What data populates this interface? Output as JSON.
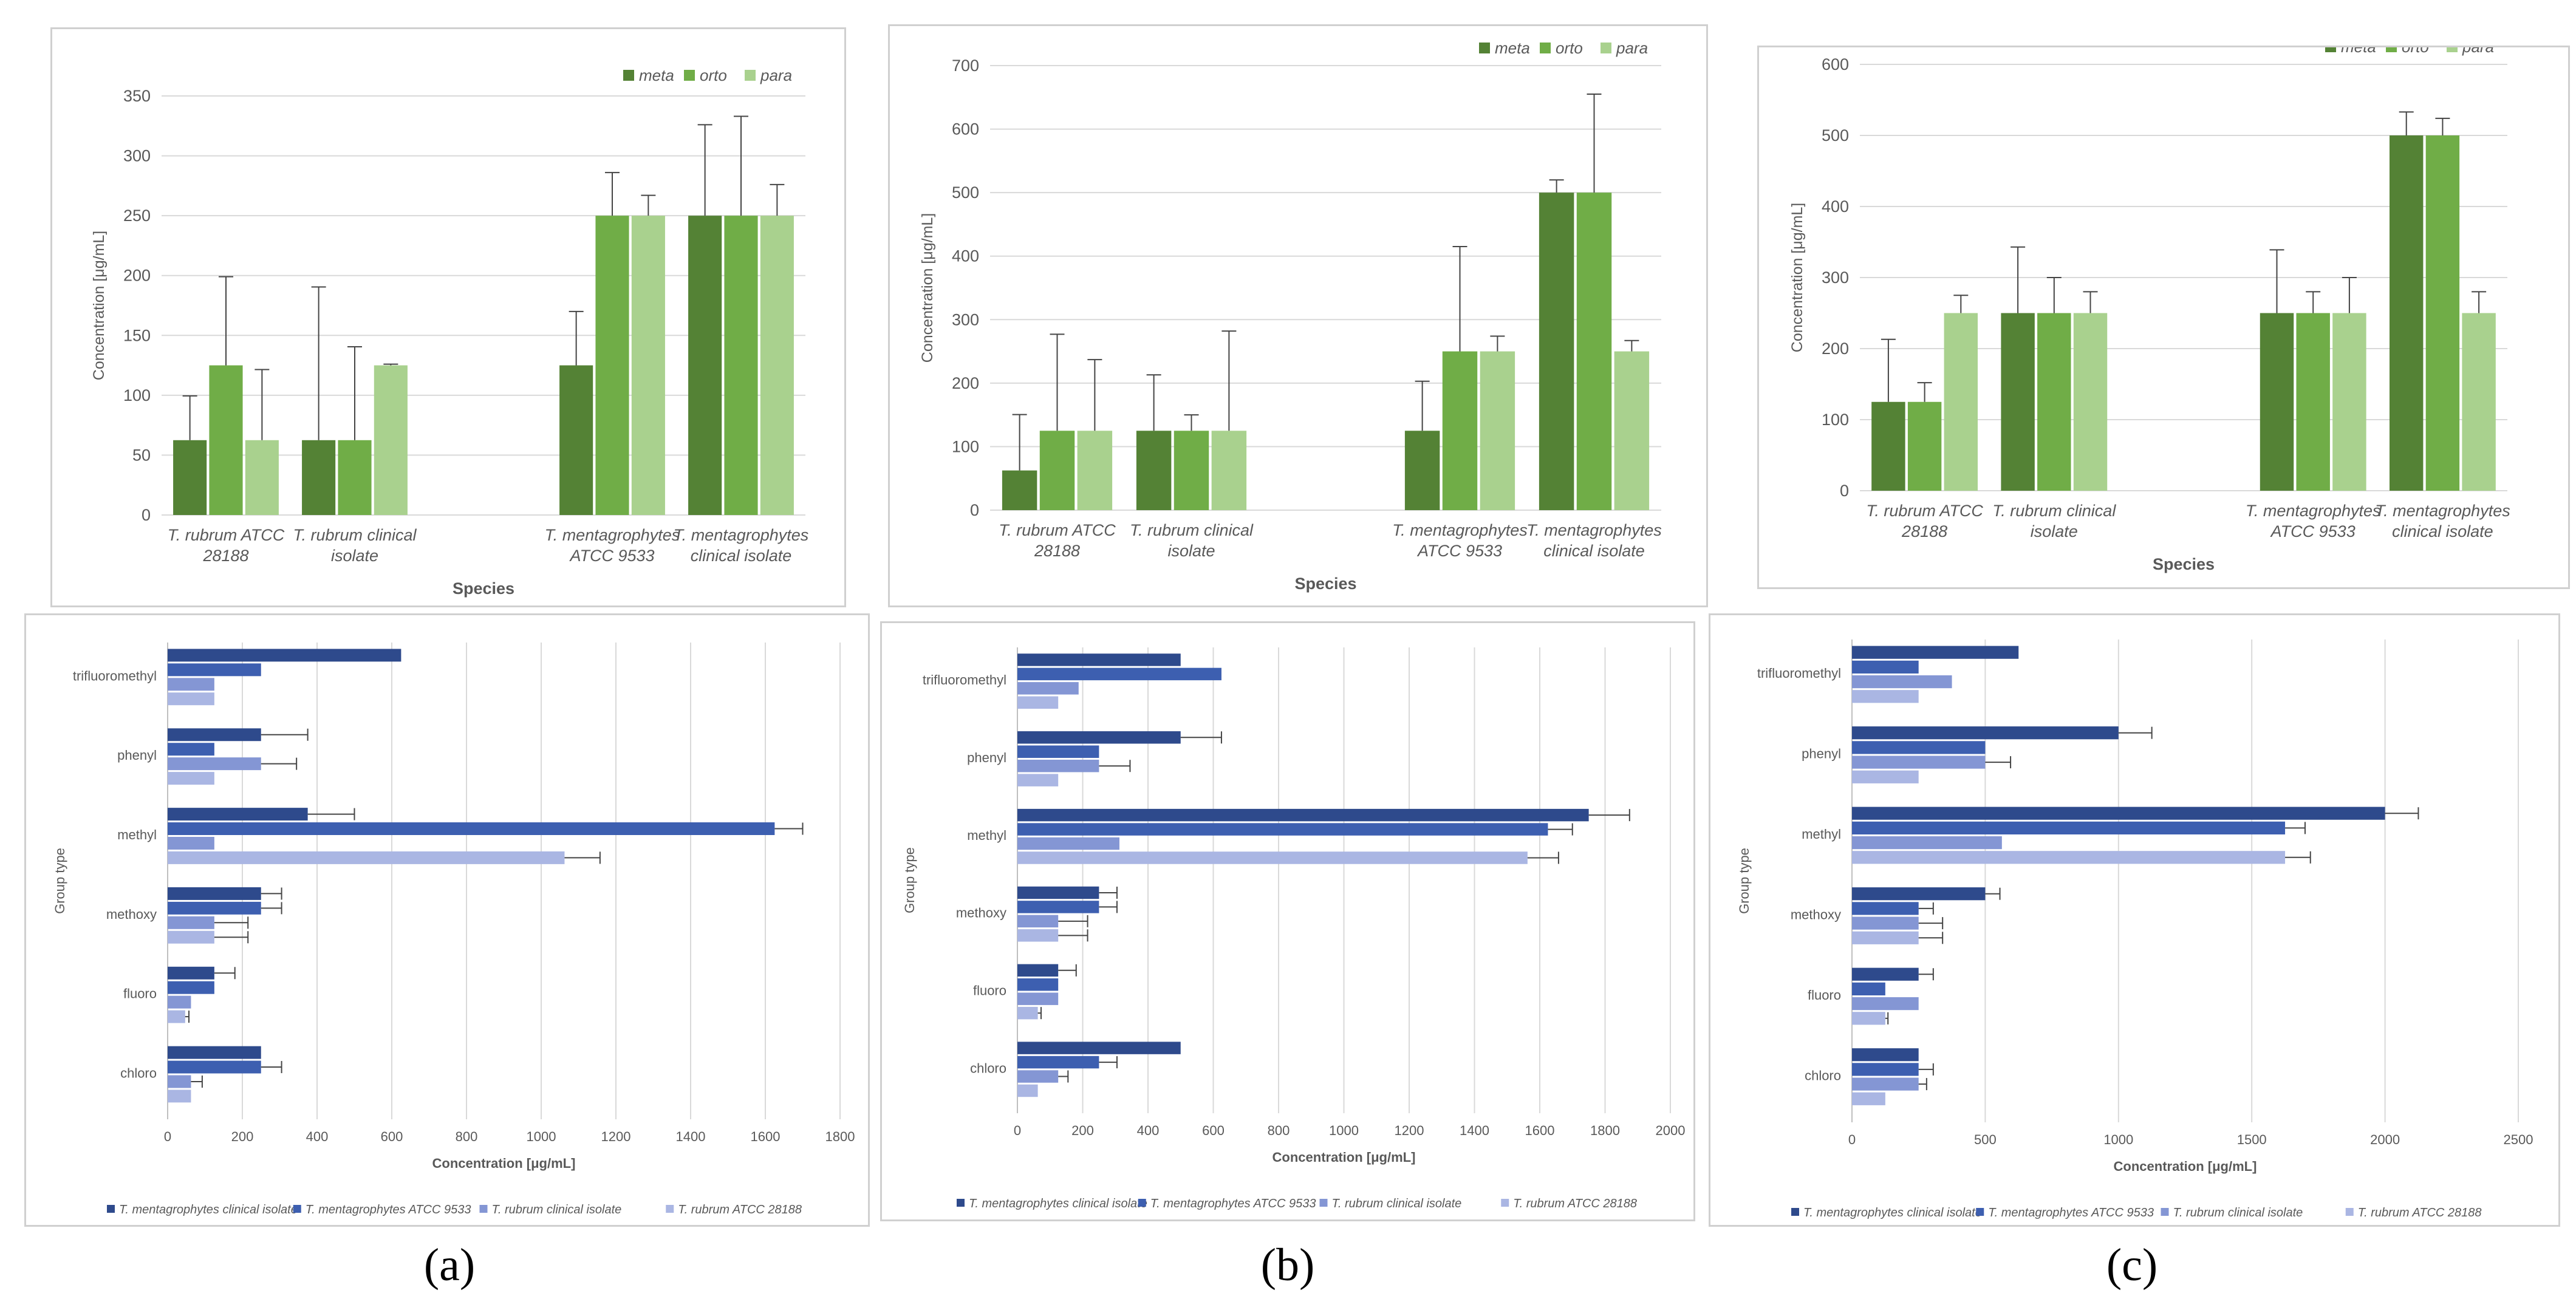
{
  "colors": {
    "meta": "#548235",
    "orto": "#70ad47",
    "para": "#a9d18e",
    "tm_clinical": "#2e4a8c",
    "tm_atcc": "#3d5fb0",
    "tr_clinical": "#8496d4",
    "tr_atcc": "#aab6e3",
    "grid": "#d9d9d9",
    "text": "#595959"
  },
  "panel_labels": [
    "(a)",
    "(b)",
    "(c)"
  ],
  "chart_data": [
    {
      "id": "a-top",
      "type": "bar",
      "title": "",
      "xlabel": "Species",
      "ylabel": "Concentration [μg/mL]",
      "ylim": [
        0,
        350
      ],
      "yticks": [
        0,
        50,
        100,
        150,
        200,
        250,
        300,
        350
      ],
      "grid": true,
      "legend_position": "top-right",
      "categories": [
        [
          "T. rubrum  ATCC",
          "28188"
        ],
        [
          "T. rubrum clinical",
          "isolate"
        ],
        [
          "T. mentagrophytes",
          "ATCC 9533"
        ],
        [
          "T. mentagrophytes",
          "clinical isolate"
        ]
      ],
      "series": [
        {
          "name": "meta",
          "values": [
            62.5,
            62.5,
            125,
            250
          ],
          "errors": [
            37,
            128,
            45,
            76
          ]
        },
        {
          "name": "orto",
          "values": [
            125,
            62.5,
            250,
            250
          ],
          "errors": [
            74,
            78,
            36,
            83
          ]
        },
        {
          "name": "para",
          "values": [
            62.5,
            125,
            250,
            250
          ],
          "errors": [
            59,
            1,
            17,
            26
          ]
        }
      ]
    },
    {
      "id": "b-top",
      "type": "bar",
      "title": "",
      "xlabel": "Species",
      "ylabel": "Concentration [μg/mL]",
      "ylim": [
        0,
        700
      ],
      "yticks": [
        0,
        100,
        200,
        300,
        400,
        500,
        600,
        700
      ],
      "grid": true,
      "legend_position": "top-right",
      "categories": [
        [
          "T. rubrum  ATCC",
          "28188"
        ],
        [
          "T. rubrum clinical",
          "isolate"
        ],
        [
          "T. mentagrophytes",
          "ATCC 9533"
        ],
        [
          "T. mentagrophytes",
          "clinical isolate"
        ]
      ],
      "series": [
        {
          "name": "meta",
          "values": [
            62.5,
            125,
            125,
            500
          ],
          "errors": [
            88,
            88,
            78,
            20
          ]
        },
        {
          "name": "orto",
          "values": [
            125,
            125,
            250,
            500
          ],
          "errors": [
            152,
            25,
            165,
            155
          ]
        },
        {
          "name": "para",
          "values": [
            125,
            125,
            250,
            250
          ],
          "errors": [
            112,
            157,
            24,
            17
          ]
        }
      ]
    },
    {
      "id": "c-top",
      "type": "bar",
      "title": "",
      "xlabel": "Species",
      "ylabel": "Concentration [μg/mL]",
      "ylim": [
        0,
        600
      ],
      "yticks": [
        0,
        100,
        200,
        300,
        400,
        500,
        600
      ],
      "grid": true,
      "legend_position": "top-right",
      "categories": [
        [
          "T. rubrum  ATCC",
          "28188"
        ],
        [
          "T. rubrum clinical",
          "isolate"
        ],
        [
          "T. mentagrophytes",
          "ATCC 9533"
        ],
        [
          "T. mentagrophytes",
          "clinical isolate"
        ]
      ],
      "series": [
        {
          "name": "meta",
          "values": [
            125,
            250,
            250,
            500
          ],
          "errors": [
            88,
            93,
            89,
            33
          ]
        },
        {
          "name": "orto",
          "values": [
            125,
            250,
            250,
            500
          ],
          "errors": [
            27,
            50,
            30,
            24
          ]
        },
        {
          "name": "para",
          "values": [
            250,
            250,
            250,
            250
          ],
          "errors": [
            25,
            30,
            50,
            30
          ]
        }
      ]
    },
    {
      "id": "a-bottom",
      "type": "bar",
      "orientation": "horizontal",
      "title": "",
      "xlabel": "Concentration  [μg/mL]",
      "ylabel": "Group type",
      "xlim": [
        0,
        1800
      ],
      "xticks": [
        0,
        200,
        400,
        600,
        800,
        1000,
        1200,
        1400,
        1600,
        1800
      ],
      "grid": true,
      "legend_position": "bottom",
      "categories": [
        "trifluoromethyl",
        "phenyl",
        "methyl",
        "methoxy",
        "fluoro",
        "chloro"
      ],
      "series": [
        {
          "name": "T. mentagrophytes  clinical isolate",
          "values": [
            625,
            250,
            375,
            250,
            125,
            250
          ],
          "errors": [
            0,
            125,
            125,
            55,
            55,
            0
          ]
        },
        {
          "name": "T. mentagrophytes  ATCC 9533",
          "values": [
            250,
            125,
            1625,
            250,
            125,
            250
          ],
          "errors": [
            0,
            0,
            75,
            55,
            0,
            55
          ]
        },
        {
          "name": "T. rubrum clinical isolate",
          "values": [
            125,
            250,
            125,
            125,
            62.5,
            62.5
          ],
          "errors": [
            0,
            95,
            0,
            90,
            0,
            30
          ]
        },
        {
          "name": "T. rubrum  ATCC 28188",
          "values": [
            125,
            125,
            1062.5,
            125,
            46.9,
            62.5
          ],
          "errors": [
            0,
            0,
            95,
            90,
            10,
            0
          ]
        }
      ]
    },
    {
      "id": "b-bottom",
      "type": "bar",
      "orientation": "horizontal",
      "title": "",
      "xlabel": "Concentration  [μg/mL]",
      "ylabel": "Group type",
      "xlim": [
        0,
        2000
      ],
      "xticks": [
        0,
        200,
        400,
        600,
        800,
        1000,
        1200,
        1400,
        1600,
        1800,
        2000
      ],
      "grid": true,
      "legend_position": "bottom",
      "categories": [
        "trifluoromethyl",
        "phenyl",
        "methyl",
        "methoxy",
        "fluoro",
        "chloro"
      ],
      "series": [
        {
          "name": "T. mentagrophytes  clinical isolate",
          "values": [
            500,
            500,
            1750,
            250,
            125,
            500
          ],
          "errors": [
            0,
            125,
            125,
            55,
            55,
            0
          ]
        },
        {
          "name": "T. mentagrophytes  ATCC 9533",
          "values": [
            625,
            250,
            1625,
            250,
            125,
            250
          ],
          "errors": [
            0,
            0,
            75,
            55,
            0,
            55
          ]
        },
        {
          "name": "T. rubrum clinical isolate",
          "values": [
            187.5,
            250,
            312.5,
            125,
            125,
            125
          ],
          "errors": [
            0,
            95,
            0,
            90,
            0,
            30
          ]
        },
        {
          "name": "T. rubrum  ATCC 28188",
          "values": [
            125,
            125,
            1562.5,
            125,
            62.5,
            62.5
          ],
          "errors": [
            0,
            0,
            95,
            90,
            10,
            0
          ]
        }
      ]
    },
    {
      "id": "c-bottom",
      "type": "bar",
      "orientation": "horizontal",
      "title": "",
      "xlabel": "Concentration  [μg/mL]",
      "ylabel": "Group type",
      "xlim": [
        0,
        2500
      ],
      "xticks": [
        0,
        500,
        1000,
        1500,
        2000,
        2500
      ],
      "grid": true,
      "legend_position": "bottom",
      "categories": [
        "trifluoromethyl",
        "phenyl",
        "methyl",
        "methoxy",
        "fluoro",
        "chloro"
      ],
      "series": [
        {
          "name": "T. mentagrophytes  clinical isolate",
          "values": [
            625,
            1000,
            2000,
            500,
            250,
            250
          ],
          "errors": [
            0,
            125,
            125,
            55,
            55,
            0
          ]
        },
        {
          "name": "T. mentagrophytes  ATCC 9533",
          "values": [
            250,
            500,
            1625,
            250,
            125,
            250
          ],
          "errors": [
            0,
            0,
            75,
            55,
            0,
            55
          ]
        },
        {
          "name": "T. rubrum clinical isolate",
          "values": [
            375,
            500,
            562.5,
            250,
            250,
            250
          ],
          "errors": [
            0,
            95,
            0,
            90,
            0,
            30
          ]
        },
        {
          "name": "T. rubrum  ATCC 28188",
          "values": [
            250,
            250,
            1625,
            250,
            125,
            125
          ],
          "errors": [
            0,
            0,
            95,
            90,
            10,
            0
          ]
        }
      ]
    }
  ]
}
